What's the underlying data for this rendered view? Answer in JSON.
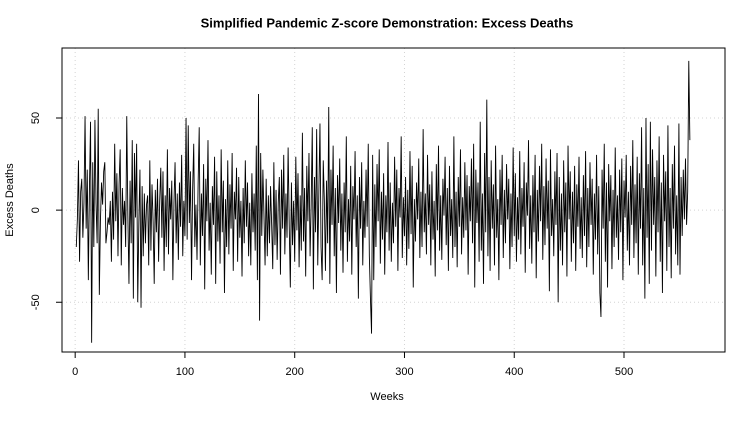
{
  "chart_data": {
    "type": "line",
    "title": "Simplified Pandemic Z-score Demonstration: Excess Deaths",
    "xlabel": "Weeks",
    "ylabel": "Excess Deaths",
    "color": "#000000",
    "grid": true,
    "xlim": [
      -12,
      592
    ],
    "ylim": [
      -77,
      88
    ],
    "xticks": [
      0,
      100,
      200,
      300,
      400,
      500
    ],
    "yticks": [
      -50,
      0,
      50
    ],
    "x": [
      1,
      2,
      3,
      4,
      5,
      6,
      7,
      8,
      9,
      10,
      11,
      12,
      13,
      14,
      15,
      16,
      17,
      18,
      19,
      20,
      21,
      22,
      23,
      24,
      25,
      26,
      27,
      28,
      29,
      30,
      31,
      32,
      33,
      34,
      35,
      36,
      37,
      38,
      39,
      40,
      41,
      42,
      43,
      44,
      45,
      46,
      47,
      48,
      49,
      50,
      51,
      52,
      53,
      54,
      55,
      56,
      57,
      58,
      59,
      60,
      61,
      62,
      63,
      64,
      65,
      66,
      67,
      68,
      69,
      70,
      71,
      72,
      73,
      74,
      75,
      76,
      77,
      78,
      79,
      80,
      81,
      82,
      83,
      84,
      85,
      86,
      87,
      88,
      89,
      90,
      91,
      92,
      93,
      94,
      95,
      96,
      97,
      98,
      99,
      100,
      101,
      102,
      103,
      104,
      105,
      106,
      107,
      108,
      109,
      110,
      111,
      112,
      113,
      114,
      115,
      116,
      117,
      118,
      119,
      120,
      121,
      122,
      123,
      124,
      125,
      126,
      127,
      128,
      129,
      130,
      131,
      132,
      133,
      134,
      135,
      136,
      137,
      138,
      139,
      140,
      141,
      142,
      143,
      144,
      145,
      146,
      147,
      148,
      149,
      150,
      151,
      152,
      153,
      154,
      155,
      156,
      157,
      158,
      159,
      160,
      161,
      162,
      163,
      164,
      165,
      166,
      167,
      168,
      169,
      170,
      171,
      172,
      173,
      174,
      175,
      176,
      177,
      178,
      179,
      180,
      181,
      182,
      183,
      184,
      185,
      186,
      187,
      188,
      189,
      190,
      191,
      192,
      193,
      194,
      195,
      196,
      197,
      198,
      199,
      200,
      201,
      202,
      203,
      204,
      205,
      206,
      207,
      208,
      209,
      210,
      211,
      212,
      213,
      214,
      215,
      216,
      217,
      218,
      219,
      220,
      221,
      222,
      223,
      224,
      225,
      226,
      227,
      228,
      229,
      230,
      231,
      232,
      233,
      234,
      235,
      236,
      237,
      238,
      239,
      240,
      241,
      242,
      243,
      244,
      245,
      246,
      247,
      248,
      249,
      250,
      251,
      252,
      253,
      254,
      255,
      256,
      257,
      258,
      259,
      260,
      261,
      262,
      263,
      264,
      265,
      266,
      267,
      268,
      269,
      270,
      271,
      272,
      273,
      274,
      275,
      276,
      277,
      278,
      279,
      280,
      281,
      282,
      283,
      284,
      285,
      286,
      287,
      288,
      289,
      290,
      291,
      292,
      293,
      294,
      295,
      296,
      297,
      298,
      299,
      300,
      301,
      302,
      303,
      304,
      305,
      306,
      307,
      308,
      309,
      310,
      311,
      312,
      313,
      314,
      315,
      316,
      317,
      318,
      319,
      320,
      321,
      322,
      323,
      324,
      325,
      326,
      327,
      328,
      329,
      330,
      331,
      332,
      333,
      334,
      335,
      336,
      337,
      338,
      339,
      340,
      341,
      342,
      343,
      344,
      345,
      346,
      347,
      348,
      349,
      350,
      351,
      352,
      353,
      354,
      355,
      356,
      357,
      358,
      359,
      360,
      361,
      362,
      363,
      364,
      365,
      366,
      367,
      368,
      369,
      370,
      371,
      372,
      373,
      374,
      375,
      376,
      377,
      378,
      379,
      380,
      381,
      382,
      383,
      384,
      385,
      386,
      387,
      388,
      389,
      390,
      391,
      392,
      393,
      394,
      395,
      396,
      397,
      398,
      399,
      400,
      401,
      402,
      403,
      404,
      405,
      406,
      407,
      408,
      409,
      410,
      411,
      412,
      413,
      414,
      415,
      416,
      417,
      418,
      419,
      420,
      421,
      422,
      423,
      424,
      425,
      426,
      427,
      428,
      429,
      430,
      431,
      432,
      433,
      434,
      435,
      436,
      437,
      438,
      439,
      440,
      441,
      442,
      443,
      444,
      445,
      446,
      447,
      448,
      449,
      450,
      451,
      452,
      453,
      454,
      455,
      456,
      457,
      458,
      459,
      460,
      461,
      462,
      463,
      464,
      465,
      466,
      467,
      468,
      469,
      470,
      471,
      472,
      473,
      474,
      475,
      476,
      477,
      478,
      479,
      480,
      481,
      482,
      483,
      484,
      485,
      486,
      487,
      488,
      489,
      490,
      491,
      492,
      493,
      494,
      495,
      496,
      497,
      498,
      499,
      500,
      501,
      502,
      503,
      504,
      505,
      506,
      507,
      508,
      509,
      510,
      511,
      512,
      513,
      514,
      515,
      516,
      517,
      518,
      519,
      520,
      521,
      522,
      523,
      524,
      525,
      526,
      527,
      528,
      529,
      530,
      531,
      532,
      533,
      534,
      535,
      536,
      537,
      538,
      539,
      540,
      541,
      542,
      543,
      544,
      545,
      546,
      547,
      548,
      549,
      550,
      551,
      552,
      553,
      554,
      555,
      556,
      557,
      558,
      559,
      560
    ],
    "values": [
      -20,
      -5,
      27,
      -28,
      10,
      17,
      -15,
      4,
      51,
      -10,
      22,
      -38,
      12,
      48,
      -72,
      26,
      -20,
      49,
      4,
      -18,
      55,
      -46,
      -6,
      15,
      3,
      21,
      26,
      -18,
      -12,
      -4,
      -8,
      5,
      -28,
      10,
      -16,
      36,
      -6,
      20,
      -25,
      14,
      33,
      -30,
      12,
      -8,
      5,
      -20,
      51,
      -3,
      -40,
      16,
      -18,
      38,
      -48,
      31,
      -4,
      36,
      -50,
      -7,
      22,
      -53,
      13,
      -25,
      9,
      -18,
      3,
      8,
      -30,
      27,
      -22,
      14,
      -6,
      -40,
      11,
      -12,
      17,
      -28,
      5,
      23,
      -15,
      21,
      -33,
      8,
      -20,
      33,
      -24,
      12,
      -5,
      16,
      -38,
      4,
      26,
      -18,
      9,
      -27,
      15,
      -9,
      30,
      -25,
      5,
      -14,
      50,
      -16,
      46,
      -7,
      21,
      -38,
      11,
      36,
      -20,
      3,
      -27,
      14,
      45,
      -30,
      9,
      -14,
      25,
      -43,
      17,
      -6,
      38,
      -22,
      4,
      -35,
      13,
      -8,
      29,
      -40,
      21,
      -17,
      8,
      -29,
      33,
      -12,
      16,
      -45,
      6,
      -20,
      27,
      -24,
      14,
      -10,
      31,
      -33,
      10,
      -5,
      23,
      -28,
      18,
      -15,
      5,
      -36,
      12,
      -18,
      27,
      -9,
      15,
      -25,
      4,
      -30,
      20,
      -12,
      9,
      -22,
      35,
      -38,
      63,
      -60,
      31,
      -14,
      22,
      -3,
      -30,
      17,
      -25,
      8,
      -18,
      13,
      -8,
      -32,
      26,
      -19,
      11,
      -27,
      4,
      18,
      -35,
      22,
      -10,
      30,
      -24,
      9,
      -15,
      34,
      -8,
      -42,
      15,
      -19,
      5,
      -28,
      29,
      -11,
      20,
      -31,
      8,
      -22,
      42,
      -17,
      12,
      -36,
      24,
      -6,
      31,
      -25,
      3,
      45,
      -43,
      18,
      -12,
      44,
      -30,
      10,
      47,
      -20,
      -38,
      27,
      5,
      -33,
      16,
      -18,
      56,
      -40,
      22,
      -8,
      35,
      -25,
      12,
      -45,
      19,
      -7,
      28,
      -22,
      9,
      -34,
      15,
      -12,
      40,
      -28,
      6,
      -17,
      24,
      -35,
      13,
      -5,
      32,
      -20,
      8,
      -48,
      18,
      -10,
      26,
      -30,
      5,
      -15,
      22,
      -9,
      36,
      -25,
      -48,
      -67,
      30,
      -38,
      14,
      -20,
      25,
      -6,
      33,
      -29,
      10,
      -16,
      20,
      -35,
      8,
      -12,
      37,
      -22,
      15,
      -28,
      4,
      -18,
      29,
      -9,
      22,
      -33,
      12,
      -4,
      40,
      -26,
      7,
      -14,
      18,
      -30,
      11,
      -21,
      32,
      -13,
      24,
      -42,
      6,
      -17,
      15,
      -5,
      28,
      -26,
      10,
      -20,
      44,
      -12,
      9,
      -24,
      30,
      -8,
      14,
      -30,
      21,
      -16,
      5,
      -36,
      25,
      -11,
      35,
      -22,
      8,
      -27,
      17,
      -3,
      29,
      -19,
      12,
      -33,
      24,
      -14,
      6,
      -26,
      40,
      -20,
      10,
      -31,
      18,
      -9,
      33,
      -24,
      7,
      -15,
      26,
      -11,
      19,
      -35,
      13,
      -6,
      28,
      -18,
      36,
      -42,
      22,
      -7,
      15,
      -28,
      48,
      -22,
      9,
      -40,
      31,
      -12,
      60,
      -25,
      18,
      -33,
      27,
      -10,
      14,
      -30,
      35,
      -15,
      6,
      -38,
      22,
      -8,
      30,
      -26,
      11,
      -18,
      25,
      -5,
      17,
      -32,
      9,
      -20,
      34,
      -14,
      20,
      -28,
      7,
      -16,
      32,
      -24,
      12,
      -9,
      26,
      -34,
      15,
      -3,
      38,
      -21,
      8,
      -29,
      19,
      -12,
      30,
      -37,
      11,
      -17,
      24,
      -6,
      36,
      -27,
      13,
      -19,
      28,
      -10,
      16,
      -44,
      33,
      -14,
      6,
      -25,
      21,
      -8,
      31,
      -50,
      18,
      -22,
      9,
      -30,
      27,
      -12,
      15,
      -36,
      35,
      -5,
      21,
      -28,
      10,
      -18,
      24,
      -33,
      14,
      -9,
      29,
      -21,
      7,
      -26,
      19,
      -14,
      32,
      -31,
      12,
      -20,
      26,
      -8,
      17,
      -35,
      9,
      -16,
      30,
      -24,
      13,
      -45,
      -58,
      22,
      -10,
      36,
      -28,
      15,
      -42,
      25,
      -6,
      19,
      -32,
      11,
      -20,
      34,
      -15,
      8,
      -27,
      22,
      -12,
      28,
      -38,
      16,
      -4,
      30,
      -22,
      10,
      -30,
      24,
      -8,
      38,
      -26,
      14,
      -18,
      29,
      -35,
      20,
      -10,
      45,
      -30,
      12,
      -48,
      50,
      -15,
      25,
      -40,
      48,
      -22,
      33,
      -8,
      18,
      -36,
      27,
      -12,
      40,
      -28,
      15,
      -45,
      30,
      -6,
      21,
      -33,
      46,
      -20,
      12,
      -37,
      25,
      -10,
      35,
      -24,
      8,
      -30,
      47,
      -35,
      18,
      -14,
      22,
      -5,
      28,
      -8,
      10,
      81,
      38
    ]
  }
}
